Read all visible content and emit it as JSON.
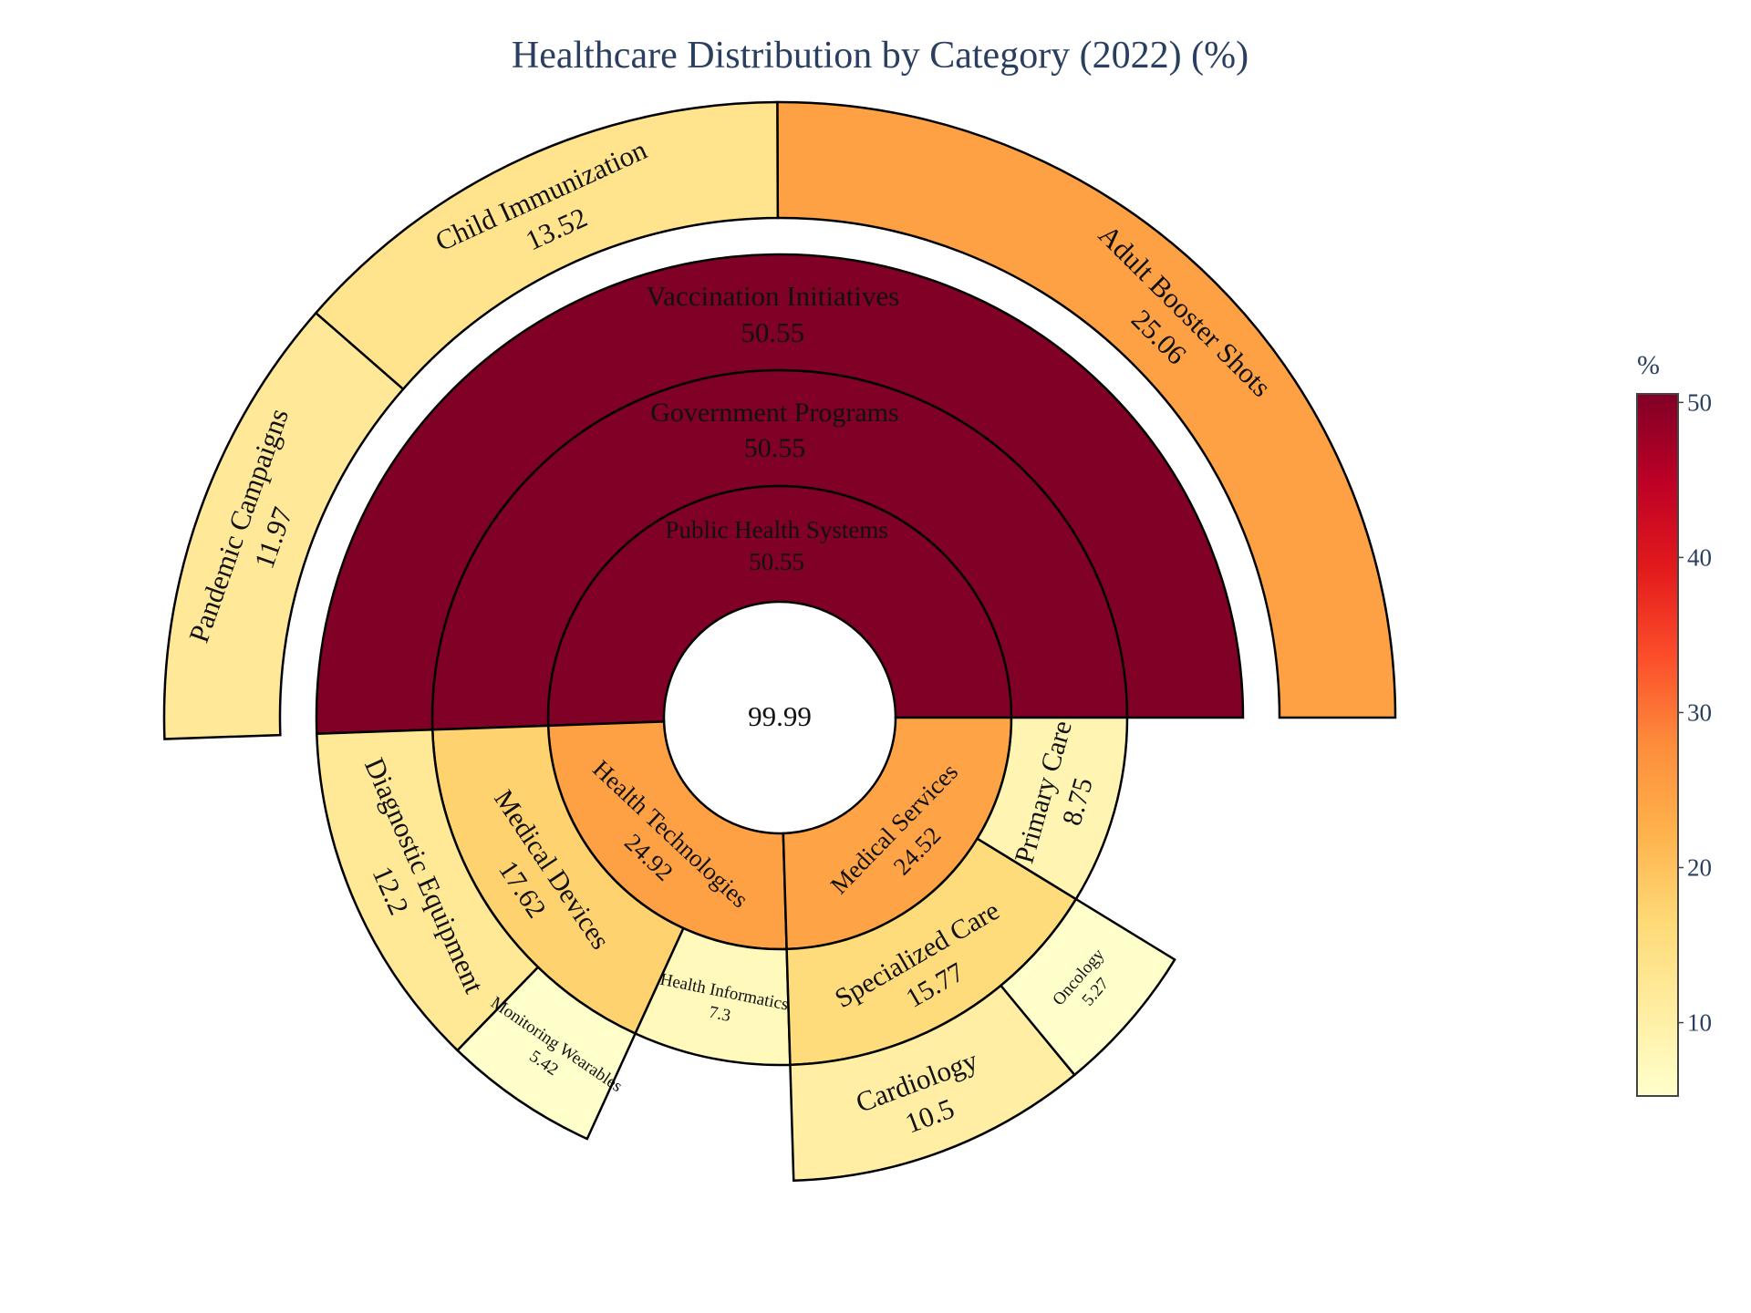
{
  "chart_data": {
    "type": "sunburst",
    "title": "Healthcare Distribution by Category (2022) (%)",
    "center": {
      "label": "",
      "value": 99.99
    },
    "nodes": [
      {
        "id": "phs",
        "label": "Public Health Systems",
        "value": 50.55,
        "parent": ""
      },
      {
        "id": "gp",
        "label": "Government Programs",
        "value": 50.55,
        "parent": "phs"
      },
      {
        "id": "vi",
        "label": "Vaccination Initiatives",
        "value": 50.55,
        "parent": "gp"
      },
      {
        "id": "abs",
        "label": "Adult Booster Shots",
        "value": 25.06,
        "parent": "vi"
      },
      {
        "id": "ci",
        "label": "Child Immunization",
        "value": 13.52,
        "parent": "vi"
      },
      {
        "id": "pc",
        "label": "Pandemic Campaigns",
        "value": 11.97,
        "parent": "vi"
      },
      {
        "id": "ht",
        "label": "Health Technologies",
        "value": 24.92,
        "parent": ""
      },
      {
        "id": "md",
        "label": "Medical Devices",
        "value": 17.62,
        "parent": "ht"
      },
      {
        "id": "de",
        "label": "Diagnostic Equipment",
        "value": 12.2,
        "parent": "md"
      },
      {
        "id": "mw",
        "label": "Monitoring Wearables",
        "value": 5.42,
        "parent": "md"
      },
      {
        "id": "hi",
        "label": "Health Informatics",
        "value": 7.3,
        "parent": "ht"
      },
      {
        "id": "ms",
        "label": "Medical Services",
        "value": 24.52,
        "parent": ""
      },
      {
        "id": "sc",
        "label": "Specialized Care",
        "value": 15.77,
        "parent": "ms"
      },
      {
        "id": "ca",
        "label": "Cardiology",
        "value": 10.5,
        "parent": "sc"
      },
      {
        "id": "on",
        "label": "Oncology",
        "value": 5.27,
        "parent": "sc"
      },
      {
        "id": "prc",
        "label": "Primary Care",
        "value": 8.75,
        "parent": "ms"
      }
    ],
    "colorscale": {
      "name": "YlOrRd",
      "title": "%",
      "range": [
        5.27,
        50.55
      ],
      "ticks": [
        10,
        20,
        30,
        40,
        50
      ],
      "stops": [
        "#ffffcc",
        "#ffeda0",
        "#fed976",
        "#feb24c",
        "#fd8d3c",
        "#fc4e2a",
        "#e31a1c",
        "#bd0026",
        "#800026"
      ]
    }
  }
}
